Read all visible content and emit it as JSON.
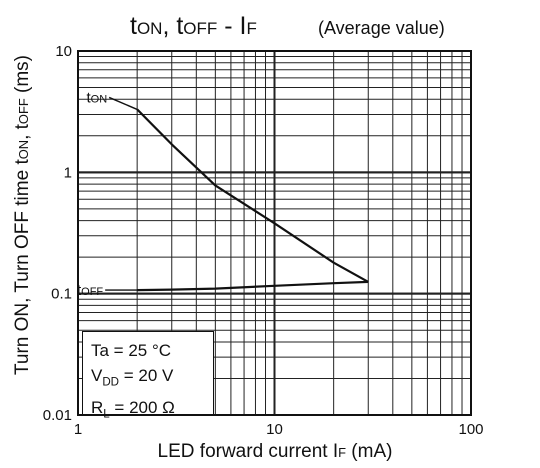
{
  "chart_data": {
    "type": "line",
    "title": {
      "main_parts": [
        "t",
        "ON",
        ", t",
        "OFF",
        " - I",
        "F"
      ],
      "note": "(Average value)"
    },
    "xlabel": {
      "parts": [
        "LED forward current I",
        "F",
        " (mA)"
      ]
    },
    "ylabel": {
      "parts": [
        "Turn ON, Turn OFF time t",
        "ON",
        ", t",
        "OFF",
        " (ms)"
      ]
    },
    "x_scale": "log",
    "y_scale": "log",
    "xlim": [
      1,
      100
    ],
    "ylim": [
      0.01,
      10
    ],
    "x_ticks": [
      {
        "value": 1,
        "label": "1"
      },
      {
        "value": 10,
        "label": "10"
      },
      {
        "value": 100,
        "label": "100"
      }
    ],
    "y_ticks": [
      {
        "value": 0.01,
        "label": "0.01"
      },
      {
        "value": 0.1,
        "label": "0.1"
      },
      {
        "value": 1,
        "label": "1"
      },
      {
        "value": 10,
        "label": "10"
      }
    ],
    "grid": true,
    "series": [
      {
        "label_parts": [
          "t",
          "ON"
        ],
        "x": [
          2,
          3,
          5,
          10,
          20,
          30
        ],
        "y": [
          3.3,
          1.7,
          0.78,
          0.38,
          0.18,
          0.125
        ]
      },
      {
        "label_parts": [
          "t",
          "OFF"
        ],
        "x": [
          2,
          3,
          5,
          10,
          20,
          30
        ],
        "y": [
          0.107,
          0.108,
          0.11,
          0.116,
          0.122,
          0.125
        ]
      }
    ],
    "conditions": [
      {
        "parts": [
          "Ta = 25 °C"
        ]
      },
      {
        "parts": [
          "V",
          "DD",
          " = 20 V"
        ]
      },
      {
        "parts": [
          "R",
          "L",
          " = 200 Ω"
        ]
      }
    ]
  },
  "colors": {
    "line": "#111111",
    "grid": "#222222",
    "background": "#ffffff"
  }
}
